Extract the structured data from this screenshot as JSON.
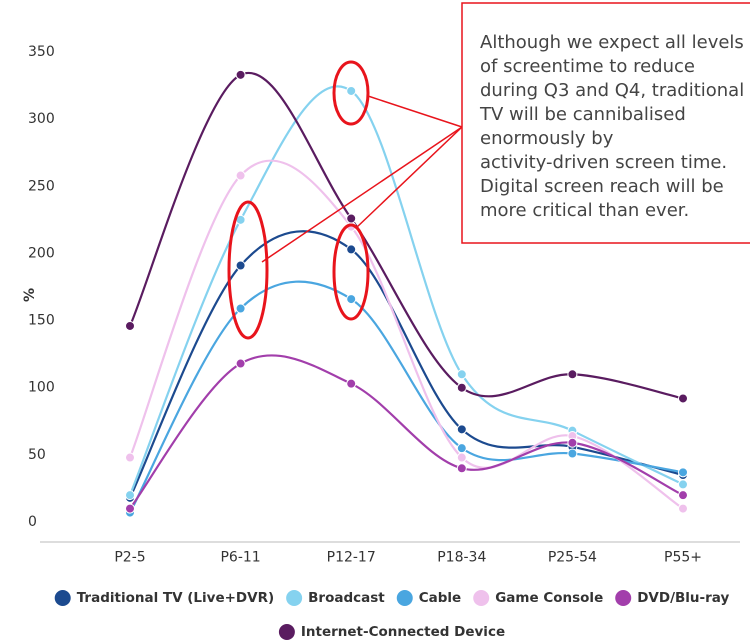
{
  "chart_data": {
    "type": "line",
    "y_label": "%",
    "categories": [
      "P2-5",
      "P6-11",
      "P12-17",
      "P18-34",
      "P25-54",
      "P55+"
    ],
    "ylim": [
      0,
      350
    ],
    "yticks": [
      0,
      50,
      100,
      150,
      200,
      250,
      300,
      350
    ],
    "series": [
      {
        "name": "Traditional TV (Live+DVR)",
        "color": "#1c4a8f",
        "values": [
          18,
          191,
          203,
          69,
          56,
          35
        ]
      },
      {
        "name": "Broadcast",
        "color": "#85d2ef",
        "values": [
          20,
          225,
          321,
          110,
          68,
          28
        ]
      },
      {
        "name": "Cable",
        "color": "#4aa6e0",
        "values": [
          7,
          159,
          166,
          55,
          51,
          37
        ]
      },
      {
        "name": "Game Console",
        "color": "#efc1ec",
        "values": [
          48,
          258,
          220,
          48,
          64,
          10
        ]
      },
      {
        "name": "DVD/Blu-ray",
        "color": "#a23eab",
        "values": [
          10,
          118,
          103,
          40,
          59,
          20
        ]
      },
      {
        "name": "Internet-Connected Device",
        "color": "#5a1c60",
        "values": [
          146,
          333,
          226,
          100,
          110,
          92
        ]
      }
    ],
    "annotation": [
      "Although we expect all levels",
      "of screentime to reduce",
      "during Q3 and Q4, traditional",
      "TV will be cannibalised",
      "enormously by",
      "activity-driven screen time.",
      "Digital screen reach will be",
      "more critical than ever."
    ]
  }
}
